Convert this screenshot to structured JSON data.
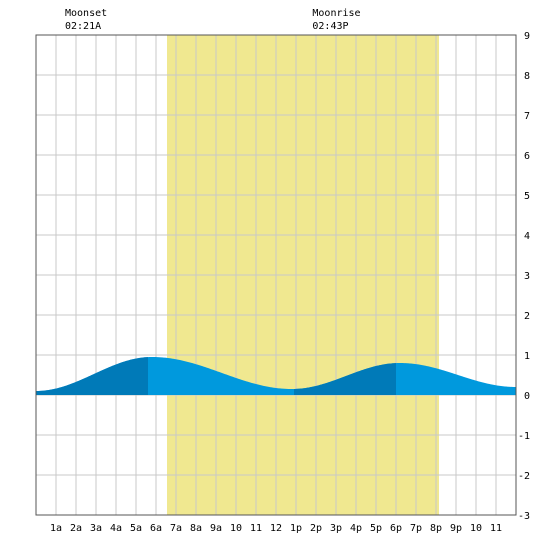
{
  "chart_data": {
    "type": "area",
    "title": "",
    "xlabel": "",
    "ylabel": "",
    "x_range_hours": [
      0,
      24
    ],
    "ylim": [
      -3,
      9
    ],
    "y_ticks": [
      "-3",
      "-2",
      "-1",
      "0",
      "1",
      "2",
      "3",
      "4",
      "5",
      "6",
      "7",
      "8",
      "9"
    ],
    "x_tick_labels": [
      "1a",
      "2a",
      "3a",
      "4a",
      "5a",
      "6a",
      "7a",
      "8a",
      "9a",
      "10",
      "11",
      "12",
      "1p",
      "2p",
      "3p",
      "4p",
      "5p",
      "6p",
      "7p",
      "8p",
      "9p",
      "10",
      "11"
    ],
    "grid": true,
    "daylight_hours": [
      6.55,
      20.15
    ],
    "daylight_color": "#f0e890",
    "colors": {
      "tide_light": "#0099dd",
      "tide_dark": "#007ab8",
      "grid": "#c8c8c8"
    },
    "tide_extremes": [
      {
        "hour": 0.0,
        "height": 0.1
      },
      {
        "hour": 5.8,
        "height": 0.95
      },
      {
        "hour": 12.8,
        "height": 0.15
      },
      {
        "hour": 18.2,
        "height": 0.8
      },
      {
        "hour": 24.0,
        "height": 0.2
      }
    ],
    "dark_bands_hours": [
      [
        0,
        5.6
      ],
      [
        12.9,
        18.0
      ]
    ],
    "annotations": [
      {
        "label": "Moonset",
        "time": "02:21A",
        "hour": 2.35
      },
      {
        "label": "Moonrise",
        "time": "02:43P",
        "hour": 14.72
      }
    ]
  }
}
